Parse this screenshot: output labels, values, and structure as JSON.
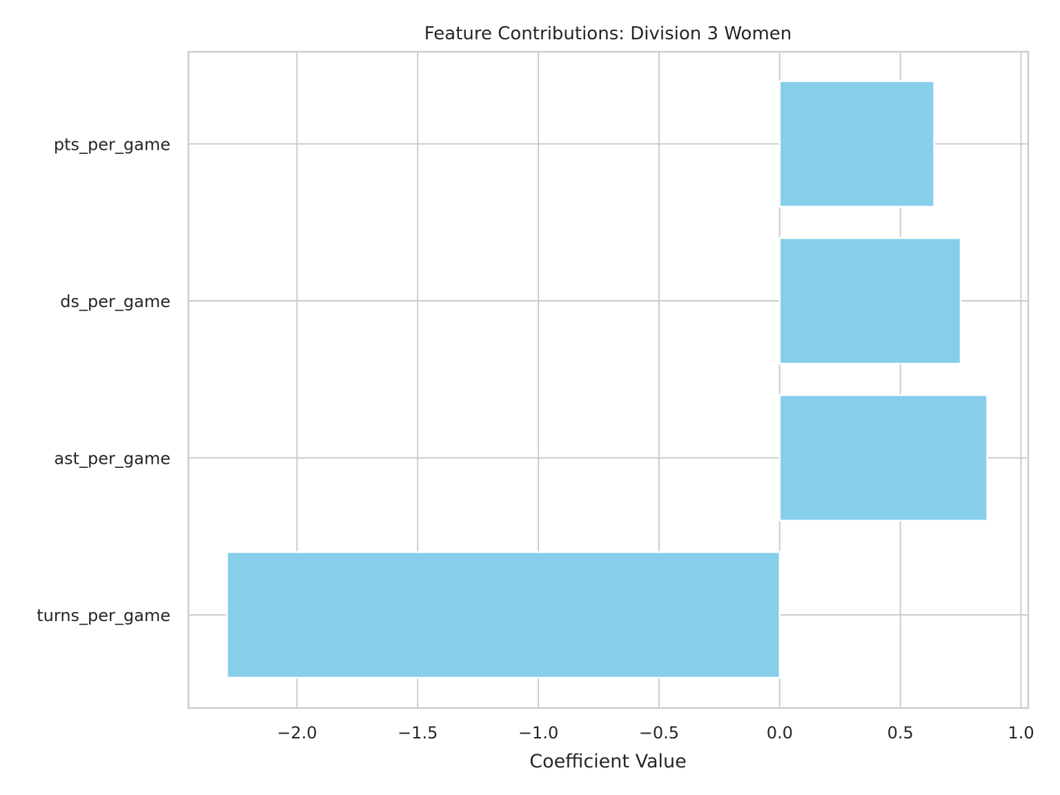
{
  "chart_data": {
    "type": "bar",
    "orientation": "horizontal",
    "title": "Feature Contributions: Division 3 Women",
    "xlabel": "Coefficient Value",
    "ylabel": "",
    "categories": [
      "pts_per_game",
      "ds_per_game",
      "ast_per_game",
      "turns_per_game"
    ],
    "values": [
      0.64,
      0.75,
      0.86,
      -2.29
    ],
    "xlim": [
      -2.45,
      1.03
    ],
    "xticks": [
      -2.0,
      -1.5,
      -1.0,
      -0.5,
      0.0,
      0.5,
      1.0
    ],
    "xtick_labels": [
      "−2.0",
      "−1.5",
      "−1.0",
      "−0.5",
      "0.0",
      "0.5",
      "1.0"
    ],
    "grid": true,
    "bar_color": "#87ceeb",
    "grid_color": "#cccccc",
    "text_color": "#262626"
  }
}
